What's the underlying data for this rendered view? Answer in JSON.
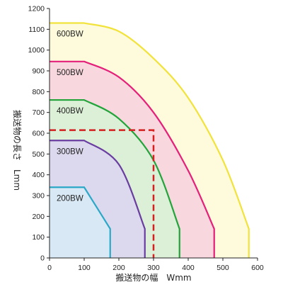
{
  "chart_data": {
    "type": "area",
    "xlabel": "搬送物の幅　Wmm",
    "ylabel": "搬送物の長さ　Lmm",
    "xlim": [
      0,
      600
    ],
    "ylim": [
      0,
      1200
    ],
    "x_ticks": [
      0,
      100,
      200,
      300,
      400,
      500,
      600
    ],
    "y_ticks": [
      0,
      100,
      200,
      300,
      400,
      500,
      600,
      700,
      800,
      900,
      1000,
      1100,
      1200
    ],
    "grid": false,
    "series": [
      {
        "name": "600BW",
        "color": "#f2e23c",
        "fill": "#fdfbdc",
        "points": [
          [
            0,
            1130
          ],
          [
            100,
            1130
          ],
          [
            200,
            1090
          ],
          [
            300,
            960
          ],
          [
            400,
            770
          ],
          [
            500,
            470
          ],
          [
            575,
            140
          ],
          [
            575,
            0
          ]
        ]
      },
      {
        "name": "500BW",
        "color": "#e4207a",
        "fill": "#f8d7de",
        "points": [
          [
            0,
            945
          ],
          [
            100,
            945
          ],
          [
            200,
            870
          ],
          [
            300,
            700
          ],
          [
            400,
            420
          ],
          [
            475,
            140
          ],
          [
            475,
            0
          ]
        ]
      },
      {
        "name": "400BW",
        "color": "#22a43a",
        "fill": "#dcefd7",
        "points": [
          [
            0,
            760
          ],
          [
            100,
            760
          ],
          [
            200,
            670
          ],
          [
            300,
            470
          ],
          [
            375,
            140
          ],
          [
            375,
            0
          ]
        ]
      },
      {
        "name": "300BW",
        "color": "#6a3ea1",
        "fill": "#dcd9ee",
        "points": [
          [
            0,
            565
          ],
          [
            100,
            565
          ],
          [
            200,
            450
          ],
          [
            275,
            140
          ],
          [
            275,
            0
          ]
        ]
      },
      {
        "name": "200BW",
        "color": "#2ba8c8",
        "fill": "#d8e9f5",
        "points": [
          [
            0,
            340
          ],
          [
            100,
            340
          ],
          [
            175,
            140
          ],
          [
            175,
            0
          ]
        ]
      }
    ],
    "reference_lines": [
      {
        "style": "dashed",
        "color": "#d62020",
        "points": [
          [
            0,
            615
          ],
          [
            300,
            615
          ],
          [
            300,
            0
          ]
        ]
      }
    ]
  }
}
